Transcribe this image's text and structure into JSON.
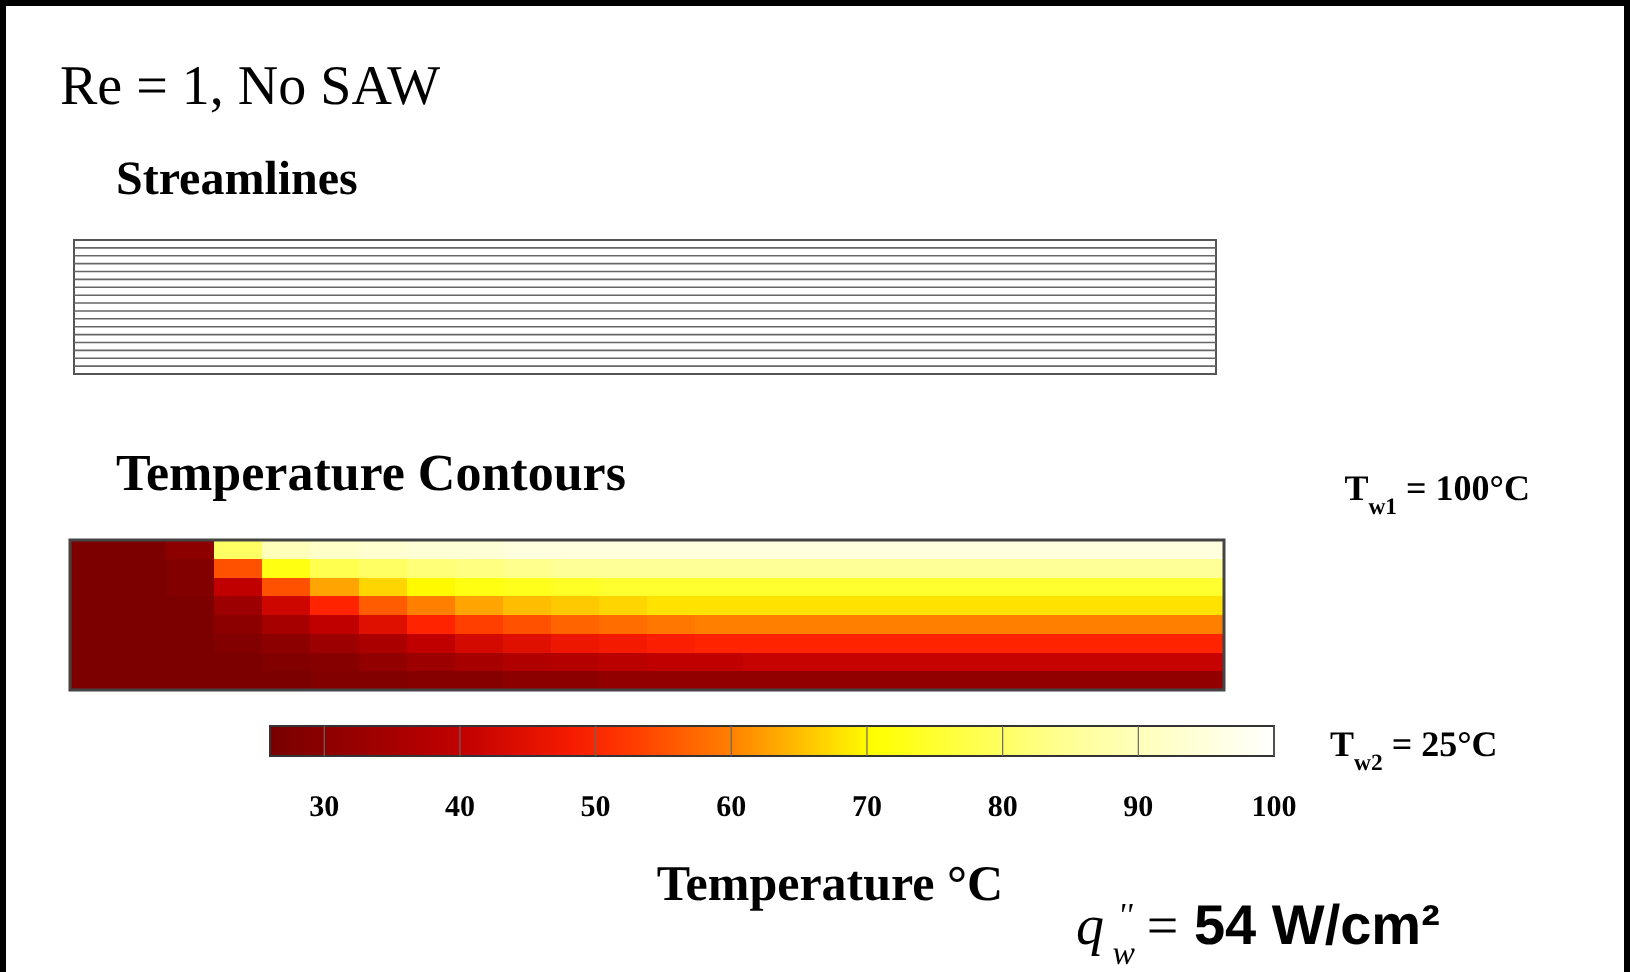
{
  "chart_data": {
    "type": "heatmap",
    "title": "Re = 1, No SAW",
    "subtitle": "Streamlines",
    "clabel": "Temperature °C",
    "annotations": [
      "Temperature Contours",
      "T$_{w1}$ = 100°C",
      "T$_{w2}$ = 25°C",
      "q$^{''}$$_{w}$ =  54 W/cm²"
    ],
    "categories": [
      null,
      null,
      null,
      null,
      null,
      null,
      null,
      null,
      null,
      null,
      null,
      null,
      null,
      null,
      null,
      null,
      null,
      null,
      null,
      null,
      null,
      null,
      null,
      null
    ],
    "y_categories": [
      null,
      null,
      null,
      null,
      null,
      null,
      null,
      null
    ],
    "cells": [
      [
        27,
        27,
        30,
        80,
        90,
        92,
        93,
        94,
        94,
        95,
        95,
        95,
        95,
        95,
        95,
        95,
        95,
        95,
        95,
        95,
        95,
        95,
        95,
        95
      ],
      [
        27,
        27,
        28,
        55,
        72,
        78,
        80,
        82,
        83,
        84,
        85,
        85,
        85,
        85,
        85,
        85,
        85,
        85,
        85,
        85,
        85,
        85,
        85,
        85
      ],
      [
        27,
        27,
        28,
        40,
        55,
        63,
        67,
        70,
        72,
        73,
        74,
        75,
        75,
        75,
        75,
        75,
        75,
        75,
        75,
        75,
        75,
        75,
        75,
        75
      ],
      [
        27,
        27,
        27,
        33,
        42,
        50,
        56,
        60,
        63,
        65,
        66,
        67,
        68,
        68,
        68,
        68,
        68,
        68,
        68,
        68,
        68,
        68,
        68,
        68
      ],
      [
        27,
        27,
        27,
        30,
        35,
        40,
        45,
        50,
        53,
        55,
        57,
        58,
        59,
        60,
        60,
        60,
        60,
        60,
        60,
        60,
        60,
        60,
        60,
        60
      ],
      [
        27,
        27,
        27,
        28,
        30,
        33,
        36,
        40,
        43,
        45,
        47,
        48,
        49,
        50,
        50,
        50,
        50,
        50,
        50,
        50,
        50,
        50,
        50,
        50
      ],
      [
        27,
        27,
        27,
        27,
        28,
        29,
        31,
        33,
        35,
        37,
        38,
        39,
        40,
        40,
        41,
        41,
        41,
        41,
        41,
        41,
        41,
        41,
        41,
        41
      ],
      [
        27,
        27,
        27,
        27,
        27,
        28,
        28,
        29,
        29,
        30,
        30,
        31,
        31,
        31,
        31,
        31,
        31,
        31,
        31,
        31,
        31,
        31,
        31,
        31
      ]
    ],
    "clim": [
      26,
      100
    ],
    "cticks": [
      30,
      40,
      50,
      60,
      70,
      80,
      90,
      100
    ]
  }
}
